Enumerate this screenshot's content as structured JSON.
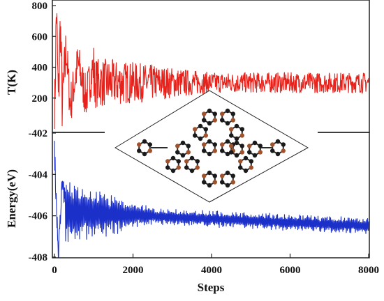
{
  "chart_data": [
    {
      "type": "line",
      "ylabel": "T(K)",
      "xlim": [
        0,
        8000
      ],
      "ylim": [
        0,
        800
      ],
      "yticks": [
        200,
        400,
        600,
        800
      ],
      "yticklabels": [
        "200",
        "400",
        "600",
        "800"
      ],
      "grid": false,
      "series": [
        {
          "color": "#e8221b",
          "x": [
            0,
            50,
            100,
            150,
            200,
            300,
            400,
            600,
            800,
            1000,
            1500,
            2000,
            2500,
            3000,
            3500,
            4000,
            4500,
            5000,
            5500,
            6000,
            6500,
            7000,
            7500,
            8000
          ],
          "y": [
            0,
            800,
            150,
            700,
            130,
            520,
            150,
            430,
            200,
            420,
            260,
            340,
            310,
            290,
            300,
            300,
            295,
            290,
            300,
            295,
            300,
            290,
            300,
            300
          ],
          "mean": 300,
          "amplitude_early": 180,
          "amplitude_late": 45
        }
      ]
    },
    {
      "type": "line",
      "xlabel": "Steps",
      "ylabel": "Energy(eV)",
      "xlim": [
        0,
        8000
      ],
      "ylim": [
        -408,
        -402
      ],
      "xticks": [
        0,
        2000,
        4000,
        6000,
        8000
      ],
      "xticklabels": [
        "0",
        "2000",
        "4000",
        "6000",
        "8000"
      ],
      "yticks": [
        -408,
        -406,
        -404,
        -402
      ],
      "yticklabels": [
        "-408",
        "-406",
        "-404",
        "-402"
      ],
      "grid": false,
      "series": [
        {
          "color": "#1b2fc9",
          "x": [
            0,
            100,
            200,
            400,
            600,
            800,
            1000,
            1500,
            2000,
            3000,
            4000,
            5000,
            6000,
            7000,
            8000
          ],
          "y": [
            -402.8,
            -408.0,
            -404.3,
            -407.2,
            -405.0,
            -404.0,
            -406.7,
            -405.2,
            -406.3,
            -406.1,
            -406.3,
            -406.4,
            -406.4,
            -406.5,
            -406.6
          ],
          "mean_start": -405.8,
          "mean_end": -406.5,
          "amplitude_early": 1.6,
          "amplitude_late": 0.35
        }
      ]
    }
  ],
  "inset": {
    "description_role": "atomic-structure",
    "border_color": "#222222",
    "atom_color_dark": "#1a1a1a",
    "atom_color_brown": "#a0522d",
    "bond_color": "#2a2a2a"
  }
}
